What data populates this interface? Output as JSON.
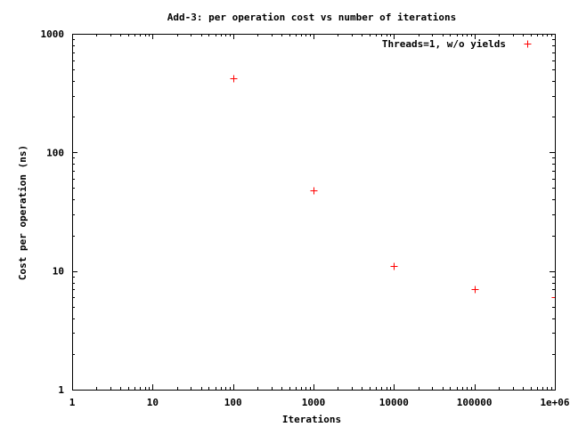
{
  "chart_data": {
    "type": "scatter",
    "title": "Add-3: per operation cost vs number of iterations",
    "xlabel": "Iterations",
    "ylabel": "Cost per operation (ns)",
    "x_scale": "log",
    "y_scale": "log",
    "xlim": [
      1,
      1000000
    ],
    "ylim": [
      1,
      1000
    ],
    "x_ticks": [
      1,
      10,
      100,
      1000,
      10000,
      100000,
      1000000
    ],
    "x_tick_labels": [
      "1",
      "10",
      "100",
      "1000",
      "10000",
      "100000",
      "1e+06"
    ],
    "y_ticks": [
      1,
      10,
      100,
      1000
    ],
    "y_tick_labels": [
      "1",
      "10",
      "100",
      "1000"
    ],
    "grid": false,
    "legend_position": "top-right",
    "series": [
      {
        "name": "Threads=1, w/o yields",
        "marker": "plus",
        "color": "#ff0000",
        "x": [
          100,
          1000,
          10000,
          100000,
          1000000
        ],
        "y": [
          420,
          48,
          11,
          7,
          6
        ]
      }
    ]
  }
}
